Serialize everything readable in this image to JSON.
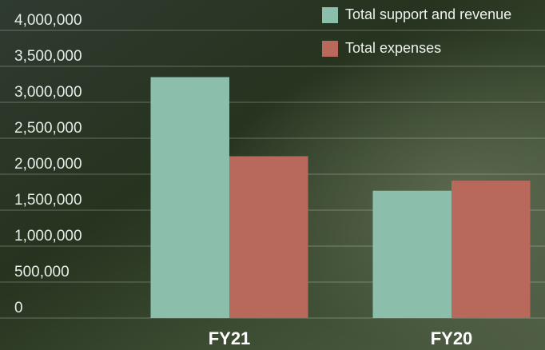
{
  "chart_data": {
    "type": "bar",
    "categories": [
      "FY21",
      "FY20"
    ],
    "series": [
      {
        "name": "Total support and revenue",
        "color": "#8bbfab",
        "values": [
          3350000,
          1770000
        ]
      },
      {
        "name": "Total expenses",
        "color": "#b9695b",
        "values": [
          2250000,
          1910000
        ]
      }
    ],
    "ylim": [
      0,
      4000000
    ],
    "yticks": [
      {
        "value": 0,
        "label": "0"
      },
      {
        "value": 500000,
        "label": "500,000"
      },
      {
        "value": 1000000,
        "label": "1,000,000"
      },
      {
        "value": 1500000,
        "label": "1,500,000"
      },
      {
        "value": 2000000,
        "label": "2,000,000"
      },
      {
        "value": 2500000,
        "label": "2,500,000"
      },
      {
        "value": 3000000,
        "label": "3,000,000"
      },
      {
        "value": 3500000,
        "label": "3,500,000"
      },
      {
        "value": 4000000,
        "label": "4,000,000"
      }
    ],
    "grid": true,
    "legend": "top-right"
  }
}
